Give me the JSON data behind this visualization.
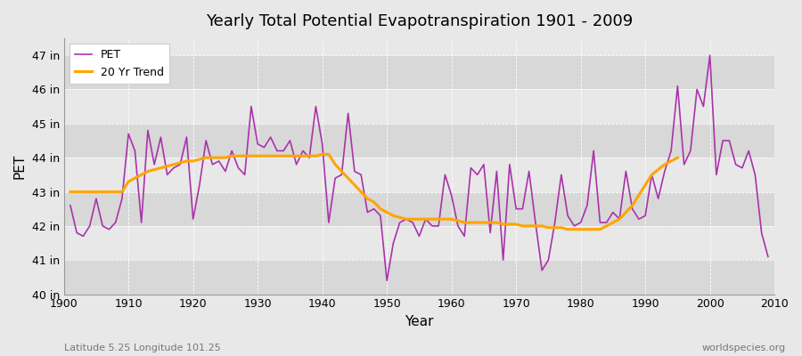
{
  "title": "Yearly Total Potential Evapotranspiration 1901 - 2009",
  "xlabel": "Year",
  "ylabel": "PET",
  "subtitle_left": "Latitude 5.25 Longitude 101.25",
  "subtitle_right": "worldspecies.org",
  "pet_color": "#AA33AA",
  "trend_color": "#FFA500",
  "background_color": "#E8E8E8",
  "plot_bg_light": "#E8E8E8",
  "plot_bg_dark": "#D8D8D8",
  "ylim": [
    40.0,
    47.5
  ],
  "xlim": [
    1900,
    2010
  ],
  "yticks": [
    40,
    41,
    42,
    43,
    44,
    45,
    46,
    47
  ],
  "ytick_labels": [
    "40 in",
    "41 in",
    "42 in",
    "43 in",
    "44 in",
    "45 in",
    "46 in",
    "47 in"
  ],
  "years": [
    1901,
    1902,
    1903,
    1904,
    1905,
    1906,
    1907,
    1908,
    1909,
    1910,
    1911,
    1912,
    1913,
    1914,
    1915,
    1916,
    1917,
    1918,
    1919,
    1920,
    1921,
    1922,
    1923,
    1924,
    1925,
    1926,
    1927,
    1928,
    1929,
    1930,
    1931,
    1932,
    1933,
    1934,
    1935,
    1936,
    1937,
    1938,
    1939,
    1940,
    1941,
    1942,
    1943,
    1944,
    1945,
    1946,
    1947,
    1948,
    1949,
    1950,
    1951,
    1952,
    1953,
    1954,
    1955,
    1956,
    1957,
    1958,
    1959,
    1960,
    1961,
    1962,
    1963,
    1964,
    1965,
    1966,
    1967,
    1968,
    1969,
    1970,
    1971,
    1972,
    1973,
    1974,
    1975,
    1976,
    1977,
    1978,
    1979,
    1980,
    1981,
    1982,
    1983,
    1984,
    1985,
    1986,
    1987,
    1988,
    1989,
    1990,
    1991,
    1992,
    1993,
    1994,
    1995,
    1996,
    1997,
    1998,
    1999,
    2000,
    2001,
    2002,
    2003,
    2004,
    2005,
    2006,
    2007,
    2008,
    2009
  ],
  "pet_values": [
    42.6,
    41.8,
    41.7,
    42.0,
    42.8,
    42.0,
    41.9,
    42.1,
    42.8,
    44.7,
    44.2,
    42.1,
    44.8,
    43.8,
    44.6,
    43.5,
    43.7,
    43.8,
    44.6,
    42.2,
    43.2,
    44.5,
    43.8,
    43.9,
    43.6,
    44.2,
    43.7,
    43.5,
    45.5,
    44.4,
    44.3,
    44.6,
    44.2,
    44.2,
    44.5,
    43.8,
    44.2,
    44.0,
    45.5,
    44.4,
    42.1,
    43.4,
    43.5,
    45.3,
    43.6,
    43.5,
    42.4,
    42.5,
    42.3,
    40.4,
    41.5,
    42.1,
    42.2,
    42.1,
    41.7,
    42.2,
    42.0,
    42.0,
    43.5,
    42.9,
    42.0,
    41.7,
    43.7,
    43.5,
    43.8,
    41.8,
    43.6,
    41.0,
    43.8,
    42.5,
    42.5,
    43.6,
    42.1,
    40.7,
    41.0,
    42.1,
    43.5,
    42.3,
    42.0,
    42.1,
    42.6,
    44.2,
    42.1,
    42.1,
    42.4,
    42.2,
    43.6,
    42.5,
    42.2,
    42.3,
    43.5,
    42.8,
    43.6,
    44.2,
    46.1,
    43.8,
    44.2,
    46.0,
    45.5,
    47.0,
    43.5,
    44.5,
    44.5,
    43.8,
    43.7,
    44.2,
    43.5,
    41.8,
    41.1
  ],
  "trend_values": [
    43.0,
    43.0,
    43.0,
    43.0,
    43.0,
    43.0,
    43.0,
    43.0,
    43.0,
    43.3,
    43.4,
    43.5,
    43.6,
    43.65,
    43.7,
    43.75,
    43.8,
    43.85,
    43.9,
    43.9,
    43.95,
    44.0,
    44.0,
    44.0,
    44.0,
    44.05,
    44.05,
    44.05,
    44.05,
    44.05,
    44.05,
    44.05,
    44.05,
    44.05,
    44.05,
    44.05,
    44.05,
    44.05,
    44.05,
    44.1,
    44.1,
    43.8,
    43.6,
    43.4,
    43.2,
    43.0,
    42.8,
    42.7,
    42.5,
    42.4,
    42.3,
    42.25,
    42.2,
    42.2,
    42.2,
    42.2,
    42.2,
    42.2,
    42.2,
    42.2,
    42.15,
    42.1,
    42.1,
    42.1,
    42.1,
    42.1,
    42.1,
    42.05,
    42.05,
    42.05,
    42.0,
    42.0,
    42.0,
    42.0,
    41.95,
    41.95,
    41.95,
    41.9,
    41.9,
    41.9,
    41.9,
    41.9,
    41.9,
    42.0,
    42.1,
    42.2,
    42.4,
    42.6,
    42.9,
    43.2,
    43.5,
    43.65,
    43.8,
    43.9,
    44.0,
    null,
    null,
    null,
    null,
    null,
    null,
    null,
    null,
    null,
    null,
    null,
    null,
    null,
    null
  ]
}
